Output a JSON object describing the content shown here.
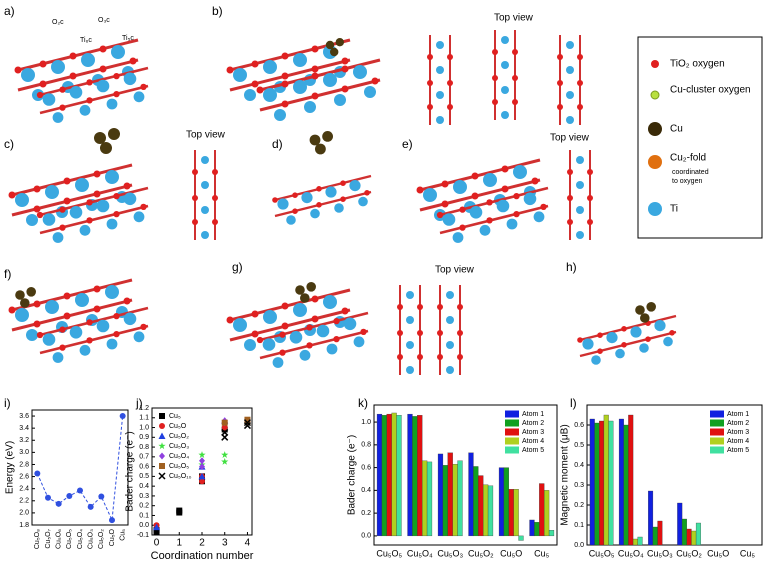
{
  "panels": [
    "a)",
    "b)",
    "c)",
    "d)",
    "e)",
    "f)",
    "g)",
    "h)",
    "i)",
    "j)",
    "k)",
    "l)"
  ],
  "top_view": [
    "Top view",
    "Top view",
    "Top view",
    "Top view"
  ],
  "site_labels": [
    "O₂c",
    "Ti₆c",
    "O₃c",
    "Ti₅c"
  ],
  "legend": {
    "items": [
      "TiO₂ oxygen",
      "Cu-cluster oxygen",
      "Cu",
      "Cu₂-fold",
      "Ti"
    ],
    "note": [
      "coordinated",
      "to oxygen"
    ]
  },
  "chart_data": [
    {
      "type": "line",
      "y_label": "Energy (eV)",
      "categories": [
        "Cu₅O₈",
        "Cu₅O₇",
        "Cu₅O₆",
        "Cu₅O₅",
        "Cu₅O₄",
        "Cu₅O₃",
        "Cu₅O₂",
        "Cu₅O",
        "Cu₅"
      ],
      "values": [
        2.65,
        2.25,
        2.15,
        2.28,
        2.37,
        2.1,
        2.27,
        1.88,
        3.6
      ],
      "color": "#3050e0",
      "ylim": [
        1.8,
        3.7
      ],
      "yticks": [
        1.8,
        {
          "value": 2,
          "label": "2.0"
        },
        2.2,
        2.4,
        2.6,
        2.8,
        {
          "value": 3,
          "label": "3.0"
        },
        3.2,
        3.4,
        3.6
      ]
    },
    {
      "type": "scatter",
      "x_label": "Coordination number",
      "y_label": "Bader charge (e⁻)",
      "xlim": [
        -0.2,
        4.2
      ],
      "xticks": [
        0,
        1,
        2,
        3,
        4
      ],
      "ylim": [
        -0.1,
        1.2
      ],
      "yticks": [
        -0.1,
        {
          "value": 0,
          "label": "0.0"
        },
        0.1,
        0.2,
        0.3,
        0.4,
        0.5,
        0.6,
        0.7,
        0.8,
        0.9,
        {
          "value": 1,
          "label": "1.0"
        },
        1.1,
        1.2
      ],
      "series": [
        {
          "name": "Cu₅",
          "color": "#000000",
          "marker": "square",
          "x": [
            0,
            0,
            1,
            1,
            2,
            2,
            3
          ],
          "values": [
            -0.05,
            -0.07,
            0.13,
            0.15,
            0.45,
            0.5,
            0.98
          ]
        },
        {
          "name": "Cu₅O",
          "color": "#e02020",
          "marker": "circle",
          "x": [
            0,
            2,
            2,
            3,
            3
          ],
          "values": [
            0,
            0.45,
            0.5,
            1.0,
            1.05
          ]
        },
        {
          "name": "Cu₅O₂",
          "color": "#2040e0",
          "marker": "triangle",
          "x": [
            0,
            2,
            2,
            3
          ],
          "values": [
            -0.02,
            0.5,
            0.6,
            1.07
          ]
        },
        {
          "name": "Cu₅O₃",
          "color": "#40e040",
          "marker": "star",
          "x": [
            2,
            2,
            3,
            3
          ],
          "values": [
            0.62,
            0.72,
            0.65,
            0.72
          ]
        },
        {
          "name": "Cu₅O₄",
          "color": "#9040e0",
          "marker": "diamond",
          "x": [
            2,
            2,
            3,
            3
          ],
          "values": [
            0.6,
            0.66,
            1.05,
            1.07
          ]
        },
        {
          "name": "Cu₅O₅",
          "color": "#a06020",
          "marker": "square",
          "x": [
            3,
            4,
            4
          ],
          "values": [
            1.05,
            1.06,
            1.08
          ]
        },
        {
          "name": "Cu₅O₁₀",
          "color": "#000000",
          "marker": "cross",
          "x": [
            3,
            3,
            4,
            4
          ],
          "values": [
            0.9,
            0.95,
            1.02,
            1.05
          ]
        }
      ]
    },
    {
      "type": "bar",
      "y_label": "Bader charge (e⁻)",
      "categories": [
        "Cu₅O₅",
        "Cu₅O₄",
        "Cu₅O₃",
        "Cu₅O₂",
        "Cu₅O",
        "Cu₅"
      ],
      "ylim": [
        -0.08,
        1.15
      ],
      "yticks": [
        {
          "value": 0,
          "label": "0.0"
        },
        0.2,
        0.4,
        0.6,
        0.8,
        {
          "value": 1,
          "label": "1.0"
        }
      ],
      "series": [
        {
          "name": "Atom 1",
          "color": "#1020e0",
          "values": [
            1.07,
            1.07,
            0.72,
            0.73,
            0.6,
            0.14
          ]
        },
        {
          "name": "Atom 2",
          "color": "#10a020",
          "values": [
            1.06,
            1.05,
            0.62,
            0.61,
            0.6,
            0.12
          ]
        },
        {
          "name": "Atom 3",
          "color": "#e01010",
          "values": [
            1.07,
            1.06,
            0.73,
            0.53,
            0.41,
            0.46
          ]
        },
        {
          "name": "Atom 4",
          "color": "#b0d020",
          "values": [
            1.08,
            0.66,
            0.63,
            0.45,
            0.41,
            0.4
          ]
        },
        {
          "name": "Atom 5",
          "color": "#40e0a0",
          "values": [
            1.06,
            0.65,
            0.66,
            0.44,
            -0.04,
            0.05
          ]
        }
      ]
    },
    {
      "type": "bar",
      "y_label": "Magnetic moment (μB)",
      "categories": [
        "Cu₅O₅",
        "Cu₅O₄",
        "Cu₅O₃",
        "Cu₅O₂",
        "Cu₅O",
        "Cu₅"
      ],
      "ylim": [
        0,
        0.7
      ],
      "yticks": [
        {
          "value": 0,
          "label": "0.0"
        },
        0.1,
        0.2,
        0.3,
        0.4,
        0.5,
        0.6
      ],
      "series": [
        {
          "name": "Atom 1",
          "color": "#1020e0",
          "values": [
            0.63,
            0.63,
            0.27,
            0.21,
            0,
            0
          ]
        },
        {
          "name": "Atom 2",
          "color": "#10a020",
          "values": [
            0.61,
            0.6,
            0.09,
            0.13,
            0,
            0
          ]
        },
        {
          "name": "Atom 3",
          "color": "#e01010",
          "values": [
            0.62,
            0.65,
            0.12,
            0.08,
            0,
            0
          ]
        },
        {
          "name": "Atom 4",
          "color": "#b0d020",
          "values": [
            0.65,
            0.03,
            0,
            0.07,
            0,
            0
          ]
        },
        {
          "name": "Atom 5",
          "color": "#40e0a0",
          "values": [
            0.62,
            0.04,
            0,
            0.11,
            0,
            0
          ]
        }
      ]
    }
  ]
}
